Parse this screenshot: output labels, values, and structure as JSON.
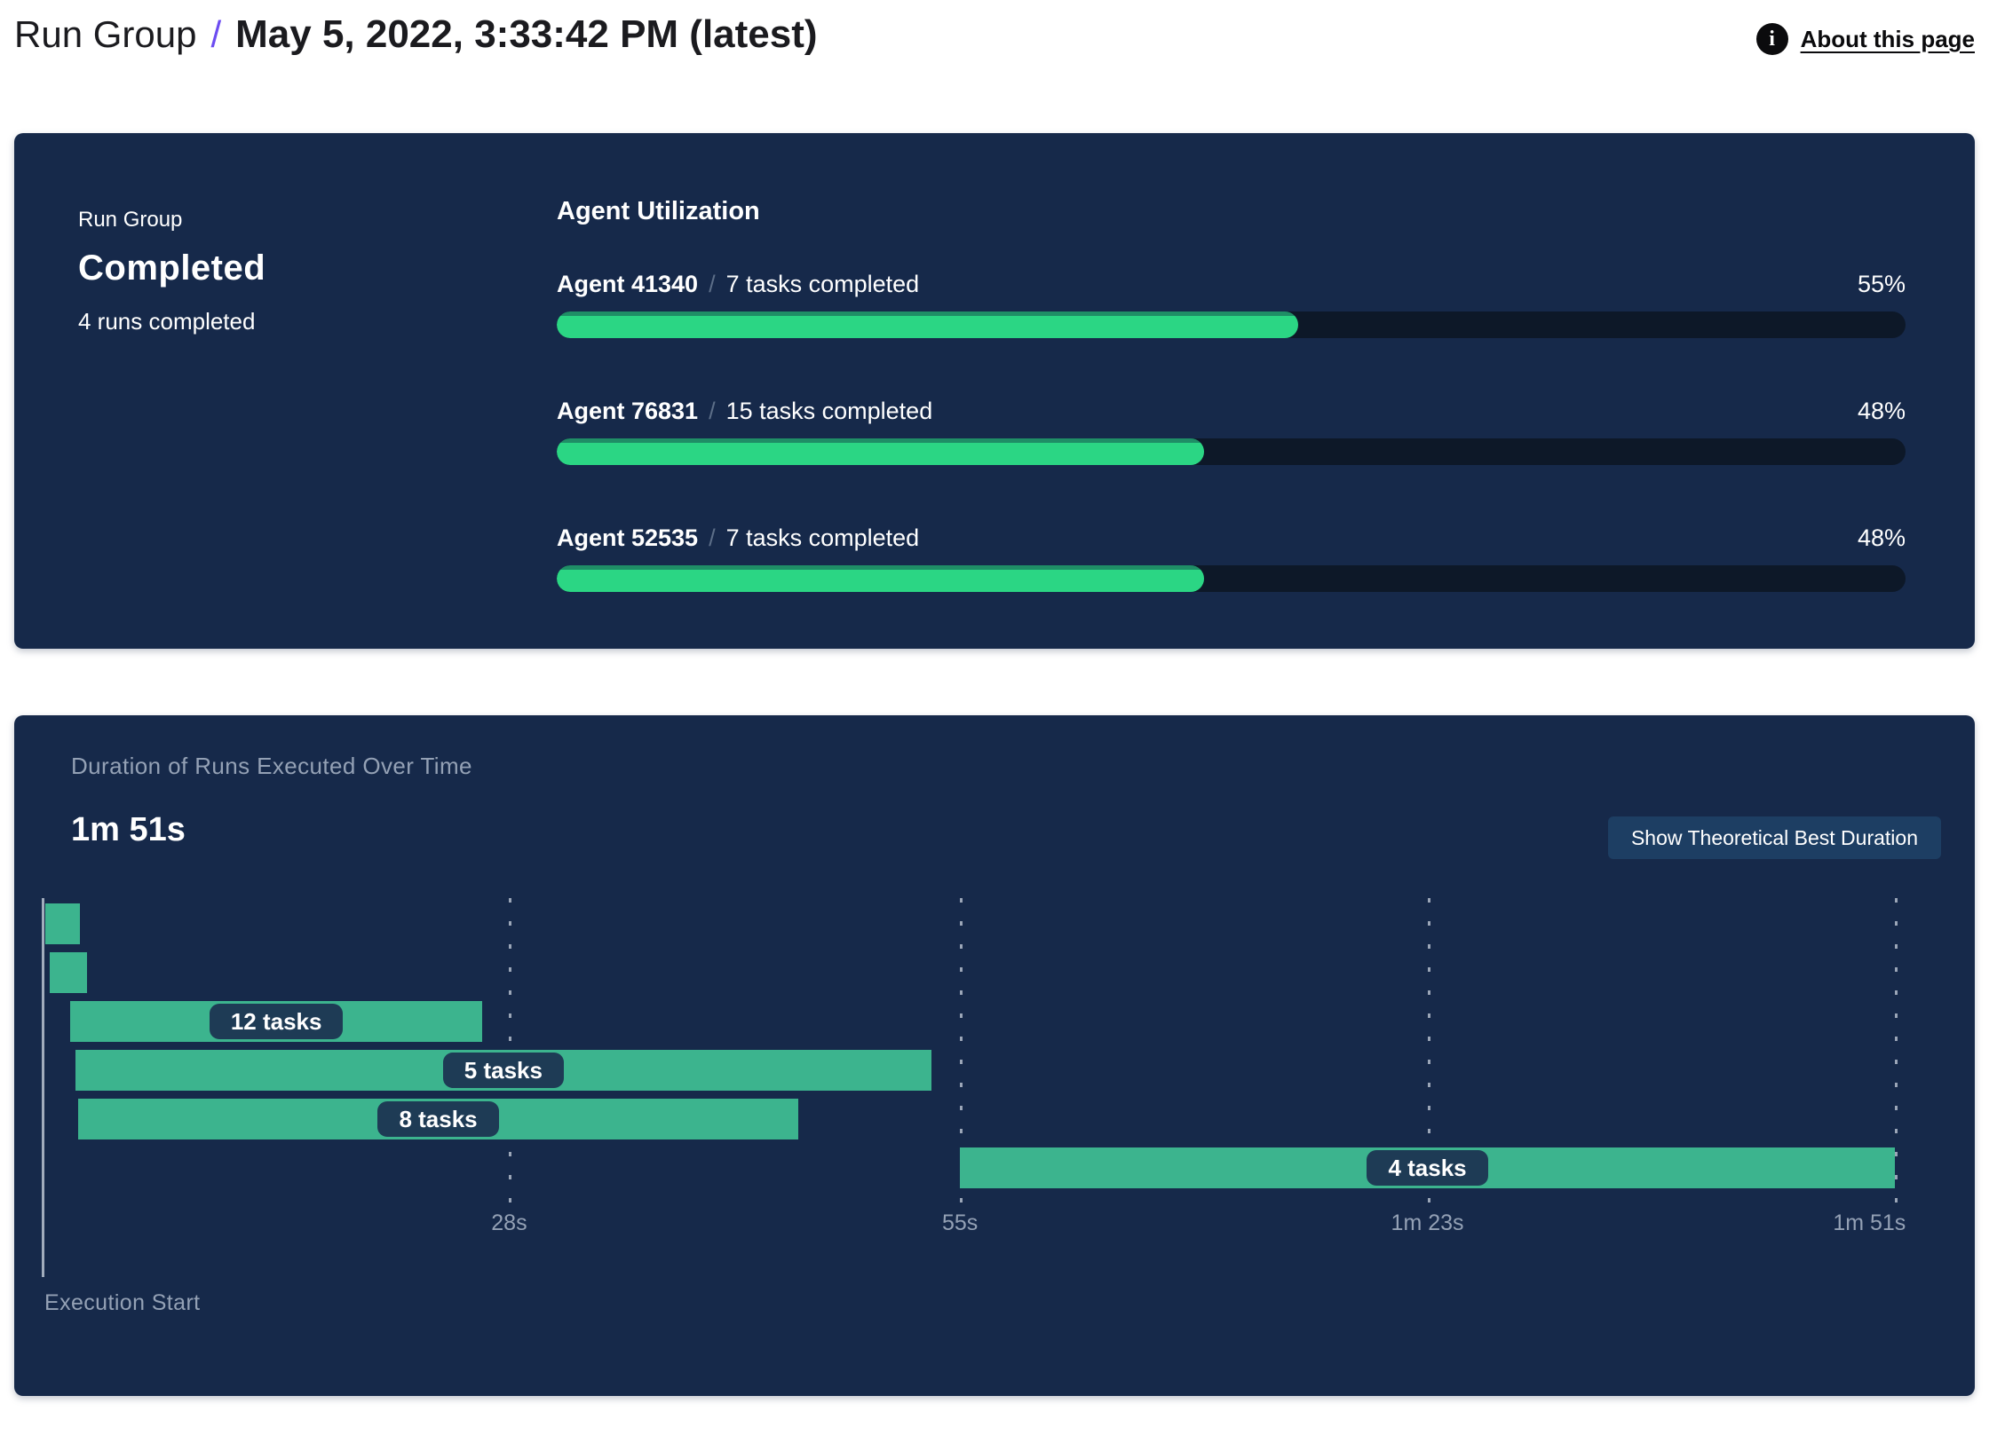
{
  "header": {
    "breadcrumb_root": "Run Group",
    "separator": "/",
    "title": "May 5, 2022, 3:33:42 PM (latest)",
    "info_icon_glyph": "i",
    "about_link": "About this page"
  },
  "summary_card": {
    "label": "Run Group",
    "status": "Completed",
    "subtext": "4 runs completed",
    "agent_utilization": {
      "heading": "Agent Utilization",
      "separator": "/",
      "agents": [
        {
          "name": "Agent 41340",
          "tasks": "7 tasks completed",
          "percent": 55,
          "percent_label": "55%"
        },
        {
          "name": "Agent 76831",
          "tasks": "15 tasks completed",
          "percent": 48,
          "percent_label": "48%"
        },
        {
          "name": "Agent 52535",
          "tasks": "7 tasks completed",
          "percent": 48,
          "percent_label": "48%"
        }
      ]
    }
  },
  "duration_card": {
    "subtitle": "Duration of Runs Executed Over Time",
    "total_duration": "1m 51s",
    "button_label": "Show Theoretical Best Duration",
    "execution_start_label": "Execution Start"
  },
  "chart_data": {
    "type": "gantt",
    "title": "Duration of Runs Executed Over Time",
    "total_duration_label": "1m 51s",
    "time_axis_seconds": [
      0,
      111
    ],
    "x_ticks": [
      {
        "label": "28s",
        "t": 28
      },
      {
        "label": "55s",
        "t": 55
      },
      {
        "label": "1m 23s",
        "t": 83
      },
      {
        "label": "1m 51s",
        "t": 111
      }
    ],
    "runs": [
      {
        "start_s": 0.2,
        "end_s": 2.3,
        "label": ""
      },
      {
        "start_s": 0.5,
        "end_s": 2.7,
        "label": ""
      },
      {
        "start_s": 1.7,
        "end_s": 26.4,
        "label": "12 tasks"
      },
      {
        "start_s": 2.0,
        "end_s": 53.3,
        "label": "5 tasks"
      },
      {
        "start_s": 2.2,
        "end_s": 45.3,
        "label": "8 tasks"
      },
      {
        "start_s": 55.0,
        "end_s": 111.0,
        "label": "4 tasks"
      }
    ]
  },
  "colors": {
    "card_bg": "#16294A",
    "progress_track": "#0D1828",
    "progress_green": "#2BD684",
    "progress_green_rim": "#1F8E66",
    "gantt_green": "#3CB48E",
    "badge_bg": "#1E3B55",
    "button_bg": "#1D3E63",
    "accent_purple": "#6C4CF1",
    "muted_text": "#94A1B5"
  }
}
